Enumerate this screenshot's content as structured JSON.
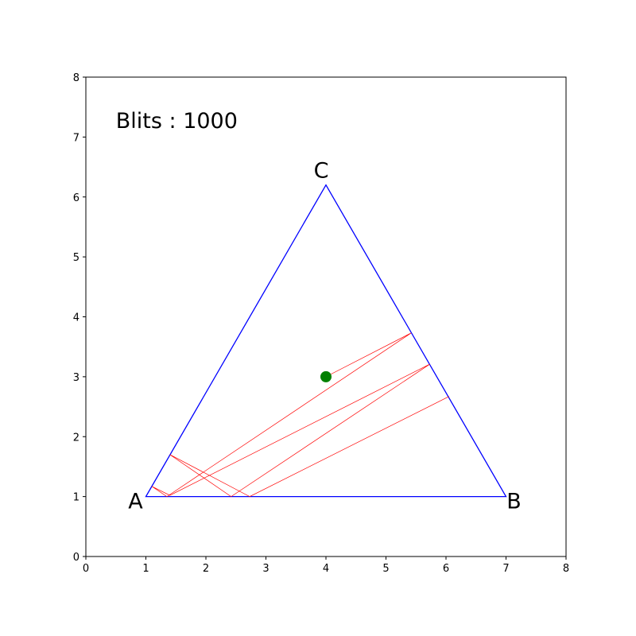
{
  "chart_data": {
    "type": "line",
    "title": "",
    "xlabel": "",
    "ylabel": "",
    "xlim": [
      0,
      8
    ],
    "ylim": [
      0,
      8
    ],
    "x_ticks": [
      0,
      1,
      2,
      3,
      4,
      5,
      6,
      7,
      8
    ],
    "y_ticks": [
      0,
      1,
      2,
      3,
      4,
      5,
      6,
      7,
      8
    ],
    "grid": false,
    "annotation": {
      "text": "Blits : 1000",
      "x": 0.5,
      "y": 7.15
    },
    "triangle": {
      "color": "#0000ff",
      "vertices": [
        {
          "name": "A",
          "x": 1,
          "y": 1
        },
        {
          "name": "B",
          "x": 7,
          "y": 1
        },
        {
          "name": "C",
          "x": 4,
          "y": 6.2
        }
      ]
    },
    "path": {
      "color": "#ff0000",
      "points": [
        [
          4.0,
          3.0
        ],
        [
          5.42,
          3.73
        ],
        [
          1.35,
          1.0
        ],
        [
          1.1,
          1.17
        ],
        [
          1.4,
          1.02
        ],
        [
          5.73,
          3.21
        ],
        [
          2.42,
          1.0
        ],
        [
          1.4,
          1.7
        ],
        [
          2.73,
          1.0
        ],
        [
          6.05,
          2.67
        ]
      ]
    },
    "current_point": {
      "x": 4.0,
      "y": 3.0,
      "color": "#008000"
    }
  }
}
